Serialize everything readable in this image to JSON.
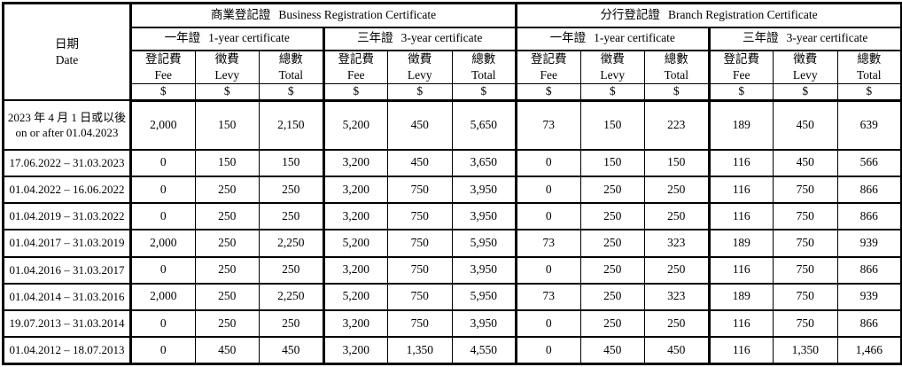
{
  "table": {
    "date_header": {
      "zh": "日期",
      "en": "Date"
    },
    "sections": [
      {
        "zh": "商業登記證",
        "en": "Business Registration Certificate"
      },
      {
        "zh": "分行登記證",
        "en": "Branch Registration Certificate"
      }
    ],
    "cert_types": [
      {
        "zh": "一年證",
        "en": "1-year certificate"
      },
      {
        "zh": "三年證",
        "en": "3-year certificate"
      }
    ],
    "col_headers": [
      {
        "zh": "登記費",
        "en": "Fee"
      },
      {
        "zh": "徵費",
        "en": "Levy"
      },
      {
        "zh": "總數",
        "en": "Total"
      }
    ],
    "currency": "$",
    "rows": [
      {
        "date_zh": "2023 年 4 月 1 日或以後",
        "date_en": "on or after 01.04.2023",
        "values": [
          "2,000",
          "150",
          "2,150",
          "5,200",
          "450",
          "5,650",
          "73",
          "150",
          "223",
          "189",
          "450",
          "639"
        ]
      },
      {
        "date": "17.06.2022 – 31.03.2023",
        "values": [
          "0",
          "150",
          "150",
          "3,200",
          "450",
          "3,650",
          "0",
          "150",
          "150",
          "116",
          "450",
          "566"
        ]
      },
      {
        "date": "01.04.2022 – 16.06.2022",
        "values": [
          "0",
          "250",
          "250",
          "3,200",
          "750",
          "3,950",
          "0",
          "250",
          "250",
          "116",
          "750",
          "866"
        ]
      },
      {
        "date": "01.04.2019 – 31.03.2022",
        "values": [
          "0",
          "250",
          "250",
          "3,200",
          "750",
          "3,950",
          "0",
          "250",
          "250",
          "116",
          "750",
          "866"
        ]
      },
      {
        "date": "01.04.2017 – 31.03.2019",
        "values": [
          "2,000",
          "250",
          "2,250",
          "5,200",
          "750",
          "5,950",
          "73",
          "250",
          "323",
          "189",
          "750",
          "939"
        ]
      },
      {
        "date": "01.04.2016 – 31.03.2017",
        "values": [
          "0",
          "250",
          "250",
          "3,200",
          "750",
          "3,950",
          "0",
          "250",
          "250",
          "116",
          "750",
          "866"
        ]
      },
      {
        "date": "01.04.2014 – 31.03.2016",
        "values": [
          "2,000",
          "250",
          "2,250",
          "5,200",
          "750",
          "5,950",
          "73",
          "250",
          "323",
          "189",
          "750",
          "939"
        ]
      },
      {
        "date": "19.07.2013 – 31.03.2014",
        "values": [
          "0",
          "250",
          "250",
          "3,200",
          "750",
          "3,950",
          "0",
          "250",
          "250",
          "116",
          "750",
          "866"
        ]
      },
      {
        "date": "01.04.2012 – 18.07.2013",
        "values": [
          "0",
          "450",
          "450",
          "3,200",
          "1,350",
          "4,550",
          "0",
          "450",
          "450",
          "116",
          "1,350",
          "1,466"
        ]
      }
    ]
  }
}
